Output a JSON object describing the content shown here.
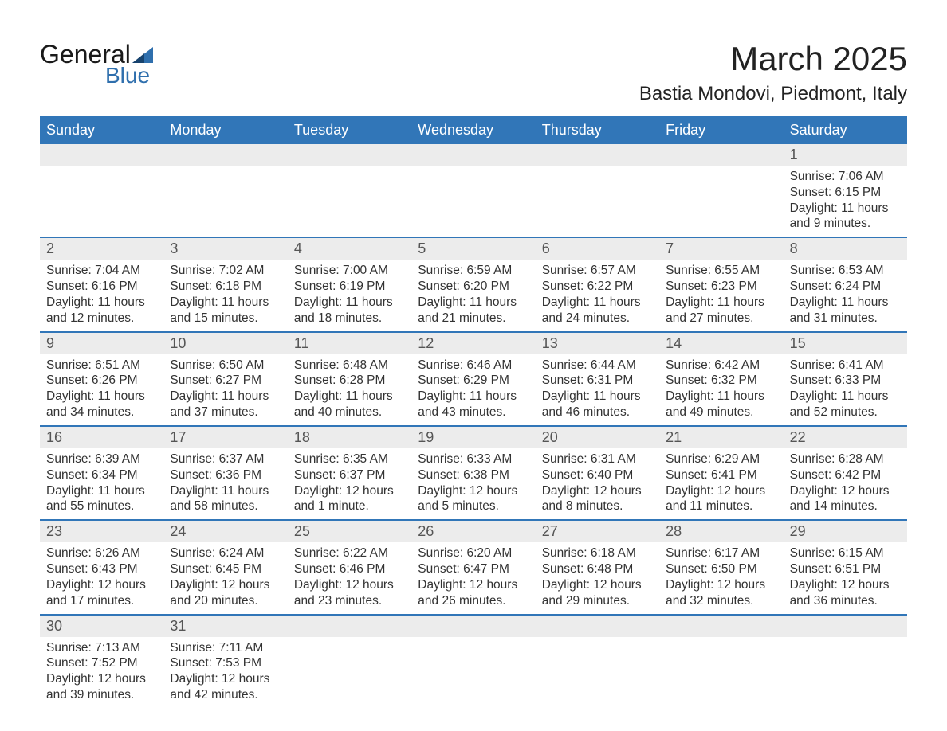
{
  "colors": {
    "header_bg": "#3176b8",
    "header_text": "#ffffff",
    "daynum_bg": "#ececec",
    "daynum_text": "#555555",
    "body_text": "#333333",
    "week_divider": "#3176b8",
    "logo_blue": "#2f6fad",
    "logo_dark": "#1a1a1a",
    "page_bg": "#ffffff"
  },
  "typography": {
    "title_fontsize": 42,
    "subtitle_fontsize": 24,
    "header_fontsize": 18,
    "daynum_fontsize": 18,
    "body_fontsize": 15.5,
    "font_family": "Arial"
  },
  "logo": {
    "text_general": "General",
    "text_blue": "Blue"
  },
  "title": {
    "main": "March 2025",
    "sub": "Bastia Mondovi, Piedmont, Italy"
  },
  "day_headers": [
    "Sunday",
    "Monday",
    "Tuesday",
    "Wednesday",
    "Thursday",
    "Friday",
    "Saturday"
  ],
  "weeks": [
    [
      null,
      null,
      null,
      null,
      null,
      null,
      {
        "n": "1",
        "s": "Sunrise: 7:06 AM",
        "t": "Sunset: 6:15 PM",
        "d1": "Daylight: 11 hours",
        "d2": "and 9 minutes."
      }
    ],
    [
      {
        "n": "2",
        "s": "Sunrise: 7:04 AM",
        "t": "Sunset: 6:16 PM",
        "d1": "Daylight: 11 hours",
        "d2": "and 12 minutes."
      },
      {
        "n": "3",
        "s": "Sunrise: 7:02 AM",
        "t": "Sunset: 6:18 PM",
        "d1": "Daylight: 11 hours",
        "d2": "and 15 minutes."
      },
      {
        "n": "4",
        "s": "Sunrise: 7:00 AM",
        "t": "Sunset: 6:19 PM",
        "d1": "Daylight: 11 hours",
        "d2": "and 18 minutes."
      },
      {
        "n": "5",
        "s": "Sunrise: 6:59 AM",
        "t": "Sunset: 6:20 PM",
        "d1": "Daylight: 11 hours",
        "d2": "and 21 minutes."
      },
      {
        "n": "6",
        "s": "Sunrise: 6:57 AM",
        "t": "Sunset: 6:22 PM",
        "d1": "Daylight: 11 hours",
        "d2": "and 24 minutes."
      },
      {
        "n": "7",
        "s": "Sunrise: 6:55 AM",
        "t": "Sunset: 6:23 PM",
        "d1": "Daylight: 11 hours",
        "d2": "and 27 minutes."
      },
      {
        "n": "8",
        "s": "Sunrise: 6:53 AM",
        "t": "Sunset: 6:24 PM",
        "d1": "Daylight: 11 hours",
        "d2": "and 31 minutes."
      }
    ],
    [
      {
        "n": "9",
        "s": "Sunrise: 6:51 AM",
        "t": "Sunset: 6:26 PM",
        "d1": "Daylight: 11 hours",
        "d2": "and 34 minutes."
      },
      {
        "n": "10",
        "s": "Sunrise: 6:50 AM",
        "t": "Sunset: 6:27 PM",
        "d1": "Daylight: 11 hours",
        "d2": "and 37 minutes."
      },
      {
        "n": "11",
        "s": "Sunrise: 6:48 AM",
        "t": "Sunset: 6:28 PM",
        "d1": "Daylight: 11 hours",
        "d2": "and 40 minutes."
      },
      {
        "n": "12",
        "s": "Sunrise: 6:46 AM",
        "t": "Sunset: 6:29 PM",
        "d1": "Daylight: 11 hours",
        "d2": "and 43 minutes."
      },
      {
        "n": "13",
        "s": "Sunrise: 6:44 AM",
        "t": "Sunset: 6:31 PM",
        "d1": "Daylight: 11 hours",
        "d2": "and 46 minutes."
      },
      {
        "n": "14",
        "s": "Sunrise: 6:42 AM",
        "t": "Sunset: 6:32 PM",
        "d1": "Daylight: 11 hours",
        "d2": "and 49 minutes."
      },
      {
        "n": "15",
        "s": "Sunrise: 6:41 AM",
        "t": "Sunset: 6:33 PM",
        "d1": "Daylight: 11 hours",
        "d2": "and 52 minutes."
      }
    ],
    [
      {
        "n": "16",
        "s": "Sunrise: 6:39 AM",
        "t": "Sunset: 6:34 PM",
        "d1": "Daylight: 11 hours",
        "d2": "and 55 minutes."
      },
      {
        "n": "17",
        "s": "Sunrise: 6:37 AM",
        "t": "Sunset: 6:36 PM",
        "d1": "Daylight: 11 hours",
        "d2": "and 58 minutes."
      },
      {
        "n": "18",
        "s": "Sunrise: 6:35 AM",
        "t": "Sunset: 6:37 PM",
        "d1": "Daylight: 12 hours",
        "d2": "and 1 minute."
      },
      {
        "n": "19",
        "s": "Sunrise: 6:33 AM",
        "t": "Sunset: 6:38 PM",
        "d1": "Daylight: 12 hours",
        "d2": "and 5 minutes."
      },
      {
        "n": "20",
        "s": "Sunrise: 6:31 AM",
        "t": "Sunset: 6:40 PM",
        "d1": "Daylight: 12 hours",
        "d2": "and 8 minutes."
      },
      {
        "n": "21",
        "s": "Sunrise: 6:29 AM",
        "t": "Sunset: 6:41 PM",
        "d1": "Daylight: 12 hours",
        "d2": "and 11 minutes."
      },
      {
        "n": "22",
        "s": "Sunrise: 6:28 AM",
        "t": "Sunset: 6:42 PM",
        "d1": "Daylight: 12 hours",
        "d2": "and 14 minutes."
      }
    ],
    [
      {
        "n": "23",
        "s": "Sunrise: 6:26 AM",
        "t": "Sunset: 6:43 PM",
        "d1": "Daylight: 12 hours",
        "d2": "and 17 minutes."
      },
      {
        "n": "24",
        "s": "Sunrise: 6:24 AM",
        "t": "Sunset: 6:45 PM",
        "d1": "Daylight: 12 hours",
        "d2": "and 20 minutes."
      },
      {
        "n": "25",
        "s": "Sunrise: 6:22 AM",
        "t": "Sunset: 6:46 PM",
        "d1": "Daylight: 12 hours",
        "d2": "and 23 minutes."
      },
      {
        "n": "26",
        "s": "Sunrise: 6:20 AM",
        "t": "Sunset: 6:47 PM",
        "d1": "Daylight: 12 hours",
        "d2": "and 26 minutes."
      },
      {
        "n": "27",
        "s": "Sunrise: 6:18 AM",
        "t": "Sunset: 6:48 PM",
        "d1": "Daylight: 12 hours",
        "d2": "and 29 minutes."
      },
      {
        "n": "28",
        "s": "Sunrise: 6:17 AM",
        "t": "Sunset: 6:50 PM",
        "d1": "Daylight: 12 hours",
        "d2": "and 32 minutes."
      },
      {
        "n": "29",
        "s": "Sunrise: 6:15 AM",
        "t": "Sunset: 6:51 PM",
        "d1": "Daylight: 12 hours",
        "d2": "and 36 minutes."
      }
    ],
    [
      {
        "n": "30",
        "s": "Sunrise: 7:13 AM",
        "t": "Sunset: 7:52 PM",
        "d1": "Daylight: 12 hours",
        "d2": "and 39 minutes."
      },
      {
        "n": "31",
        "s": "Sunrise: 7:11 AM",
        "t": "Sunset: 7:53 PM",
        "d1": "Daylight: 12 hours",
        "d2": "and 42 minutes."
      },
      null,
      null,
      null,
      null,
      null
    ]
  ]
}
